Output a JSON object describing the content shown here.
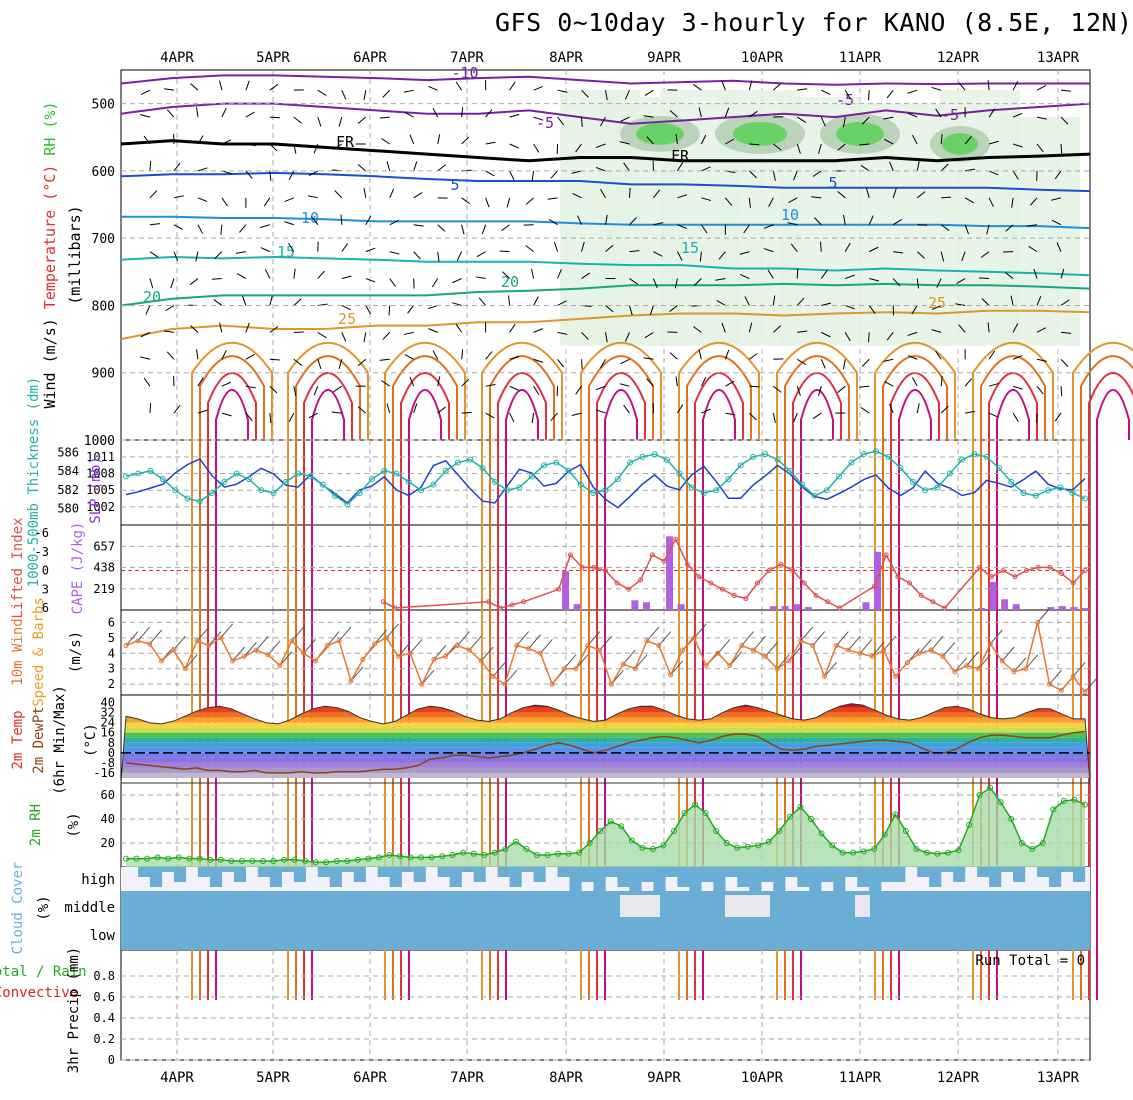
{
  "title": "GFS 0~10day 3-hourly for KANO (8.5E, 12N)",
  "colors": {
    "temp": "#e03030",
    "wind": "#000000",
    "rh": "#26c226",
    "thickness": "#20b2aa",
    "slp": "#8a2be2",
    "li": "#e05050",
    "cape": "#b060e0",
    "wind10": "#e87830",
    "speed": "#e8a020",
    "dewpt": "#8b4513",
    "rh2m": "#22aa22",
    "cloud": "#6aaed6",
    "precip_total": "#22aa22",
    "precip_conv": "#dd2222"
  },
  "chart_data": [
    {
      "id": "sounding",
      "type": "contour",
      "ylabel_parts": [
        "Wind (m/s)",
        "Temperature (°C)",
        "RH (%)",
        "(millibars)"
      ],
      "dates": [
        "4APR",
        "5APR",
        "6APR",
        "7APR",
        "8APR",
        "9APR",
        "10APR",
        "11APR",
        "12APR",
        "13APR"
      ],
      "yticks": [
        500,
        600,
        700,
        800,
        900,
        1000
      ],
      "ylim": [
        1000,
        450
      ],
      "isotherms": [
        {
          "label": "-10",
          "p": [
            470,
            462,
            458,
            458,
            460,
            462,
            465,
            462,
            460,
            465,
            470,
            468,
            466,
            470,
            472,
            470,
            471,
            470,
            470,
            470
          ]
        },
        {
          "label": "-5",
          "p": [
            515,
            505,
            500,
            500,
            505,
            510,
            515,
            515,
            510,
            520,
            530,
            525,
            520,
            515,
            520,
            510,
            518,
            510,
            505,
            500
          ]
        },
        {
          "label": "FR",
          "p": [
            560,
            555,
            560,
            560,
            565,
            570,
            575,
            580,
            585,
            580,
            580,
            585,
            585,
            585,
            585,
            580,
            585,
            580,
            578,
            575
          ]
        },
        {
          "label": "5",
          "p": [
            608,
            605,
            605,
            603,
            605,
            608,
            612,
            615,
            615,
            615,
            620,
            620,
            622,
            625,
            625,
            625,
            625,
            625,
            628,
            630
          ]
        },
        {
          "label": "10",
          "p": [
            668,
            668,
            670,
            670,
            672,
            675,
            675,
            675,
            675,
            678,
            680,
            680,
            680,
            680,
            680,
            680,
            680,
            682,
            682,
            685
          ]
        },
        {
          "label": "15",
          "p": [
            732,
            728,
            730,
            728,
            730,
            732,
            735,
            735,
            735,
            738,
            740,
            740,
            745,
            745,
            748,
            745,
            748,
            750,
            752,
            755
          ]
        },
        {
          "label": "20",
          "p": [
            800,
            790,
            785,
            785,
            785,
            785,
            785,
            780,
            778,
            775,
            770,
            770,
            770,
            768,
            770,
            768,
            770,
            770,
            772,
            775
          ]
        },
        {
          "label": "25",
          "p": [
            850,
            835,
            830,
            835,
            835,
            830,
            830,
            825,
            825,
            820,
            815,
            812,
            812,
            815,
            812,
            810,
            812,
            808,
            808,
            810
          ]
        }
      ],
      "isotherm_labels": [
        "-10",
        "-5",
        "-5",
        "-5",
        "FR",
        "FR",
        "5",
        "5",
        "10",
        "10",
        "15",
        "15",
        "20",
        "20",
        "25",
        "25"
      ]
    },
    {
      "id": "thickness_slp",
      "type": "line",
      "ylabel": "1000-500mb Thickness (dm)",
      "ylabel2": "SLP (mb)",
      "yticks_left": [
        580,
        582,
        584,
        586
      ],
      "yticks_right": [
        1002,
        1005,
        1008,
        1011
      ],
      "thickness": [
        581.5,
        581.8,
        582.2,
        582.6,
        583.8,
        584.7,
        585.3,
        583.5,
        582.3,
        582.6,
        583.4,
        584.3,
        583.7,
        582.5,
        582.3,
        583.6,
        582.5,
        581.6,
        580.6,
        582.0,
        582.4,
        583.4,
        582.0,
        581.4,
        582.3,
        584.6,
        585.1,
        583.6,
        582.1,
        580.8,
        580.6,
        582.4,
        584.2,
        583.8,
        582.4,
        582.7,
        584.0,
        584.7,
        582.3,
        581.0,
        580.1,
        581.3,
        582.6,
        583.6,
        582.4,
        582.0,
        583.6,
        584.5,
        582.9,
        581.1,
        581.1,
        582.5,
        583.5,
        584.6,
        583.7,
        582.3,
        581.3,
        581.0,
        581.6,
        582.3,
        583.1,
        583.6,
        582.2,
        581.4,
        582.2,
        584.0,
        582.7,
        582.2,
        581.4,
        581.7,
        583.0,
        582.7,
        582.3,
        583.1,
        584.0,
        582.6,
        582.1,
        582.0,
        583.2
      ],
      "slp": [
        1007.5,
        1008.0,
        1008.5,
        1007.0,
        1005.0,
        1003.5,
        1003.0,
        1004.5,
        1006.5,
        1008.0,
        1007.0,
        1005.0,
        1004.5,
        1006.5,
        1008.0,
        1007.5,
        1006.0,
        1004.0,
        1002.5,
        1004.5,
        1007.0,
        1008.5,
        1008.0,
        1006.5,
        1005.0,
        1006.0,
        1008.5,
        1010.0,
        1010.5,
        1009.0,
        1006.5,
        1005.0,
        1005.5,
        1007.5,
        1009.5,
        1010.0,
        1008.5,
        1006.0,
        1004.5,
        1005.0,
        1007.0,
        1010.0,
        1011.0,
        1011.5,
        1010.5,
        1008.0,
        1005.5,
        1004.5,
        1005.0,
        1007.0,
        1009.5,
        1011.0,
        1011.5,
        1010.5,
        1008.5,
        1006.0,
        1004.0,
        1005.0,
        1007.5,
        1010.0,
        1011.5,
        1012.0,
        1011.0,
        1009.0,
        1006.5,
        1005.0,
        1005.5,
        1008.0,
        1010.5,
        1011.5,
        1011.0,
        1009.0,
        1006.5,
        1004.5,
        1004.0,
        1005.0,
        1005.5,
        1004.5,
        1003.5
      ]
    },
    {
      "id": "li_cape",
      "type": "bar",
      "ylabel": "Lifted Index",
      "ylabel2": "CAPE (J/kg)",
      "yticks_left": [
        "-6",
        "-3",
        "0",
        "3",
        "6"
      ],
      "yticks_right": [
        219,
        438,
        657
      ],
      "li": [
        null,
        null,
        null,
        null,
        null,
        null,
        null,
        null,
        null,
        null,
        null,
        null,
        null,
        null,
        null,
        null,
        null,
        null,
        null,
        null,
        null,
        null,
        5,
        6,
        null,
        null,
        null,
        null,
        null,
        null,
        null,
        5,
        6,
        5.5,
        5,
        null,
        null,
        3,
        -2.5,
        -0.5,
        -0.5,
        0,
        2,
        3,
        1.5,
        -2.5,
        -1.5,
        -5,
        -1,
        1,
        2,
        3,
        4,
        4.5,
        2,
        0,
        -1,
        0,
        2,
        4,
        5,
        6,
        null,
        null,
        2.5,
        -2.5,
        1,
        2,
        4,
        5,
        6,
        null,
        null,
        -0.5,
        1,
        0,
        1,
        0,
        -0.5,
        -0.5,
        0.5,
        2,
        0
      ],
      "cape": [
        0,
        0,
        0,
        0,
        0,
        0,
        0,
        0,
        0,
        0,
        0,
        0,
        0,
        0,
        0,
        0,
        0,
        0,
        0,
        0,
        0,
        0,
        0,
        0,
        0,
        0,
        0,
        0,
        0,
        0,
        0,
        0,
        0,
        0,
        0,
        0,
        0,
        0,
        400,
        60,
        0,
        0,
        0,
        0,
        100,
        80,
        0,
        760,
        60,
        0,
        0,
        0,
        0,
        0,
        0,
        0,
        40,
        40,
        60,
        30,
        0,
        0,
        0,
        0,
        80,
        600,
        0,
        0,
        0,
        0,
        0,
        0,
        0,
        0,
        20,
        290,
        110,
        60,
        0,
        0,
        30,
        40,
        30,
        20
      ]
    },
    {
      "id": "wind10",
      "type": "line",
      "ylabel": "10m Wind",
      "ylabel2": "Speed & Barbs",
      "yunit": "(m/s)",
      "yticks": [
        2,
        3,
        4,
        5,
        6
      ],
      "ylim": [
        1.3,
        6.8
      ],
      "values": [
        4.5,
        4.8,
        4.6,
        3.5,
        4.2,
        3.0,
        4.8,
        4.5,
        5.0,
        3.5,
        3.8,
        4.2,
        3.9,
        3.2,
        4.8,
        4.0,
        3.5,
        4.5,
        4.8,
        2.2,
        3.6,
        4.6,
        5.0,
        3.8,
        4.0,
        2.0,
        3.6,
        3.8,
        4.5,
        4.2,
        3.5,
        2.5,
        2.0,
        4.5,
        4.3,
        4.0,
        2.0,
        3.0,
        3.0,
        4.5,
        4.2,
        2.0,
        3.3,
        3.0,
        4.8,
        4.5,
        2.6,
        4.2,
        5.0,
        3.2,
        4.0,
        3.2,
        4.5,
        4.2,
        3.8,
        3.0,
        3.5,
        4.8,
        4.5,
        2.5,
        4.5,
        4.2,
        4.0,
        3.8,
        4.2,
        2.5,
        3.4,
        4.0,
        4.2,
        3.8,
        2.8,
        3.2,
        3.0,
        4.6,
        3.5,
        2.8,
        3.0,
        6.0,
        2.0,
        1.6,
        2.5,
        1.5
      ],
      "speed_ticks": [
        6,
        5,
        4,
        3,
        2
      ]
    },
    {
      "id": "temp2m",
      "type": "area",
      "ylabel": [
        "2m Temp",
        "2m DewPt",
        "(6hr Min/Max)"
      ],
      "yunit": "(°C)",
      "yticks": [
        "40",
        "32",
        "24",
        "16",
        "8",
        "0",
        "-8",
        "-16"
      ],
      "ylim": [
        -24,
        46
      ],
      "temp": [
        29,
        27,
        24,
        23,
        25,
        29,
        33,
        36,
        37,
        35,
        31,
        27,
        24,
        23,
        26,
        31,
        35,
        37,
        36,
        33,
        28,
        25,
        23,
        25,
        30,
        35,
        37,
        36,
        33,
        29,
        26,
        25,
        27,
        32,
        36,
        38,
        37,
        34,
        30,
        27,
        25,
        26,
        31,
        35,
        37,
        37,
        34,
        30,
        27,
        26,
        27,
        32,
        36,
        38,
        36,
        33,
        30,
        27,
        26,
        28,
        33,
        37,
        39,
        38,
        34,
        30,
        27,
        26,
        28,
        32,
        36,
        37,
        35,
        31,
        28,
        27,
        28,
        32,
        35,
        35,
        31,
        27,
        27
      ],
      "dewpt": [
        -8,
        -9,
        -10,
        -11,
        -12,
        -13,
        -12,
        -14,
        -14,
        -15,
        -15,
        -14,
        -16,
        -16,
        -16,
        -15,
        -16,
        -16,
        -15,
        -15,
        -15,
        -14,
        -13,
        -13,
        -12,
        -10,
        -5,
        -4,
        -2,
        -2,
        -3,
        -4,
        -3,
        -2,
        0,
        3,
        6,
        8,
        6,
        3,
        0,
        2,
        5,
        8,
        10,
        12,
        13,
        12,
        10,
        8,
        10,
        13,
        15,
        15,
        13,
        8,
        3,
        2,
        3,
        5,
        6,
        7,
        8,
        9,
        10,
        10,
        9,
        8,
        4,
        0,
        0,
        3,
        8,
        12,
        14,
        14,
        13,
        12,
        12,
        12,
        14,
        16,
        17
      ]
    },
    {
      "id": "rh2m",
      "type": "line",
      "ylabel": "2m RH",
      "yunit": "(%)",
      "yticks": [
        20,
        40,
        60
      ],
      "ylim": [
        0,
        70
      ],
      "values": [
        7,
        7,
        7,
        8,
        7,
        8,
        7,
        7,
        6,
        6,
        5,
        5,
        5,
        5,
        5,
        6,
        6,
        5,
        4,
        4,
        5,
        5,
        6,
        7,
        8,
        10,
        9,
        8,
        8,
        8,
        9,
        10,
        12,
        11,
        10,
        12,
        15,
        21,
        15,
        10,
        10,
        11,
        11,
        12,
        20,
        30,
        38,
        34,
        22,
        16,
        15,
        18,
        30,
        45,
        52,
        45,
        30,
        20,
        16,
        17,
        18,
        21,
        30,
        42,
        50,
        40,
        28,
        18,
        12,
        12,
        13,
        15,
        27,
        44,
        30,
        15,
        12,
        11,
        12,
        14,
        35,
        60,
        66,
        54,
        40,
        20,
        15,
        20,
        48,
        55,
        56,
        52
      ]
    },
    {
      "id": "cloud",
      "type": "heatmap",
      "ylabel": "Cloud Cover",
      "yunit": "(%)",
      "levels": [
        "high",
        "middle",
        "low"
      ]
    },
    {
      "id": "precip",
      "type": "bar",
      "ylabel": [
        "Total / Rain",
        "Convective"
      ],
      "ylabel2": "3hr Precip (mm)",
      "yticks": [
        "0",
        "0.2",
        "0.4",
        "0.6",
        "0.8"
      ],
      "ylim": [
        0,
        1
      ],
      "run_total_label": "Run Total = 0",
      "values": []
    }
  ]
}
